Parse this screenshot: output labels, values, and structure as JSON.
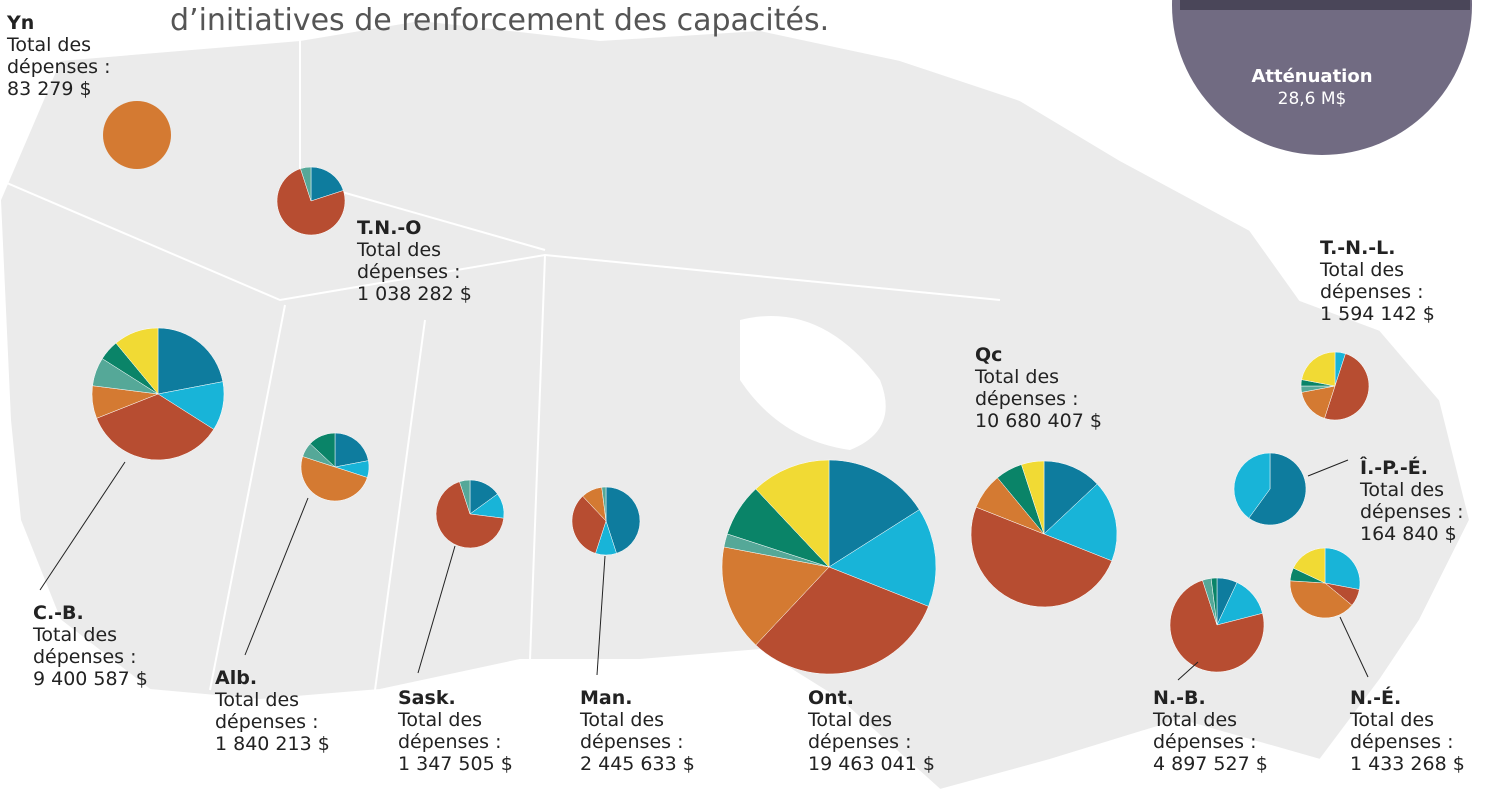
{
  "title_fragment": "d’initiatives de renforcement des capacités.",
  "callout": {
    "name": "Atténuation",
    "amount": "28,6 M$"
  },
  "total_label_lines": [
    "Total des",
    "dépenses :"
  ],
  "segment_colors": [
    "#0e7c9e",
    "#18b4d8",
    "#b74d31",
    "#d47a32",
    "#55a898",
    "#0a8468",
    "#f1da34"
  ],
  "regions": [
    {
      "name": "Yn",
      "total": "83 279 $",
      "shares": [
        0,
        0,
        0,
        100,
        0,
        0,
        0
      ]
    },
    {
      "name": "T.N.-O",
      "total": "1 038 282 $",
      "shares": [
        20,
        0,
        75,
        0,
        5,
        0,
        0
      ]
    },
    {
      "name": "C.-B.",
      "total": "9 400 587 $",
      "shares": [
        22,
        12,
        35,
        8,
        7,
        5,
        11
      ]
    },
    {
      "name": "Alb.",
      "total": "1 840 213 $",
      "shares": [
        22,
        8,
        0,
        50,
        7,
        13,
        0
      ]
    },
    {
      "name": "Sask.",
      "total": "1 347 505 $",
      "shares": [
        15,
        12,
        68,
        0,
        5,
        0,
        0
      ]
    },
    {
      "name": "Man.",
      "total": "2 445 633 $",
      "shares": [
        45,
        10,
        33,
        10,
        2,
        0,
        0
      ]
    },
    {
      "name": "Ont.",
      "total": "19 463 041 $",
      "shares": [
        16,
        15,
        31,
        16,
        2,
        8,
        12
      ]
    },
    {
      "name": "Qc",
      "total": "10 680 407 $",
      "shares": [
        13,
        18,
        50,
        8,
        0,
        6,
        5
      ]
    },
    {
      "name": "T.-N.-L.",
      "total": "1 594 142 $",
      "shares": [
        0,
        5,
        50,
        17,
        3,
        3,
        22
      ]
    },
    {
      "name": "Î.-P.-É.",
      "total": "164 840 $",
      "shares": [
        60,
        40,
        0,
        0,
        0,
        0,
        0
      ]
    },
    {
      "name": "N.-B.",
      "total": "4 897 527 $",
      "shares": [
        7,
        14,
        74,
        0,
        3,
        2,
        0
      ]
    },
    {
      "name": "N.-É.",
      "total": "1 433 268 $",
      "shares": [
        0,
        28,
        8,
        40,
        0,
        6,
        18
      ]
    }
  ]
}
